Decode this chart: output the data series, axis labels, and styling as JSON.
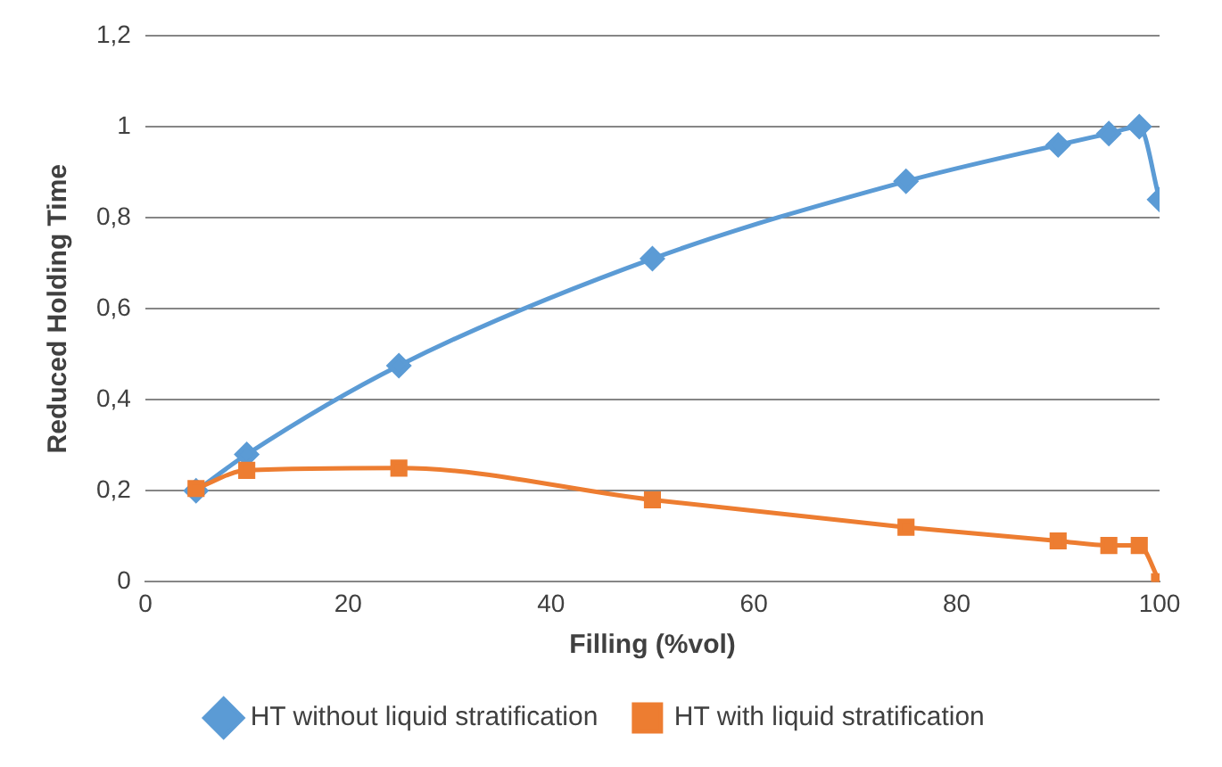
{
  "chart_data": {
    "type": "line",
    "xlabel": "Filling (%vol)",
    "ylabel": "Reduced Holding Time",
    "x": [
      5,
      10,
      25,
      50,
      75,
      90,
      95,
      98,
      100
    ],
    "series": [
      {
        "name": "HT without liquid stratification",
        "color": "#5b9bd5",
        "marker": "diamond",
        "values": [
          0.2,
          0.28,
          0.475,
          0.71,
          0.88,
          0.96,
          0.985,
          1.0,
          0.84
        ]
      },
      {
        "name": "HT with liquid stratification",
        "color": "#ed7d31",
        "marker": "square",
        "values": [
          0.205,
          0.245,
          0.25,
          0.18,
          0.12,
          0.09,
          0.08,
          0.08,
          0.0
        ]
      }
    ],
    "xlim": [
      0,
      100
    ],
    "xticks": [
      0,
      20,
      40,
      60,
      80,
      100
    ],
    "ylim": [
      0,
      1.2
    ],
    "yticks": [
      {
        "value": 0,
        "label": "0"
      },
      {
        "value": 0.2,
        "label": "0,2"
      },
      {
        "value": 0.4,
        "label": "0,4"
      },
      {
        "value": 0.6,
        "label": "0,6"
      },
      {
        "value": 0.8,
        "label": "0,8"
      },
      {
        "value": 1,
        "label": "1"
      },
      {
        "value": 1.2,
        "label": "1,2"
      }
    ],
    "grid": "y",
    "legend": "bottom",
    "line_style": "solid"
  }
}
